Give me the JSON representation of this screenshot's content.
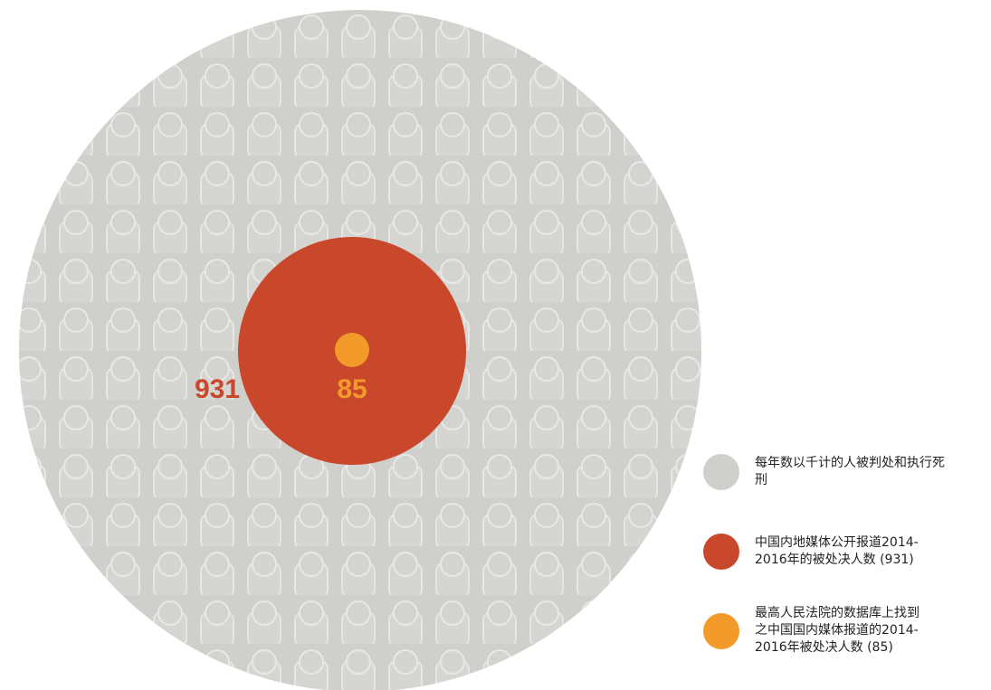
{
  "circles": [
    {
      "legend": "每年数以千计的人被判处和执行死刑",
      "color": "#cfcfcb"
    },
    {
      "label": 931,
      "legend": "中国内地媒体公开报道2014-2016年的被处决人数 (931)",
      "color": "#c9482b"
    },
    {
      "label": 85,
      "legend": "最高人民法院的数据库上找到之中国国内媒体报道的2014-2016年被处决人数 (85)",
      "color": "#f29b2b"
    }
  ]
}
